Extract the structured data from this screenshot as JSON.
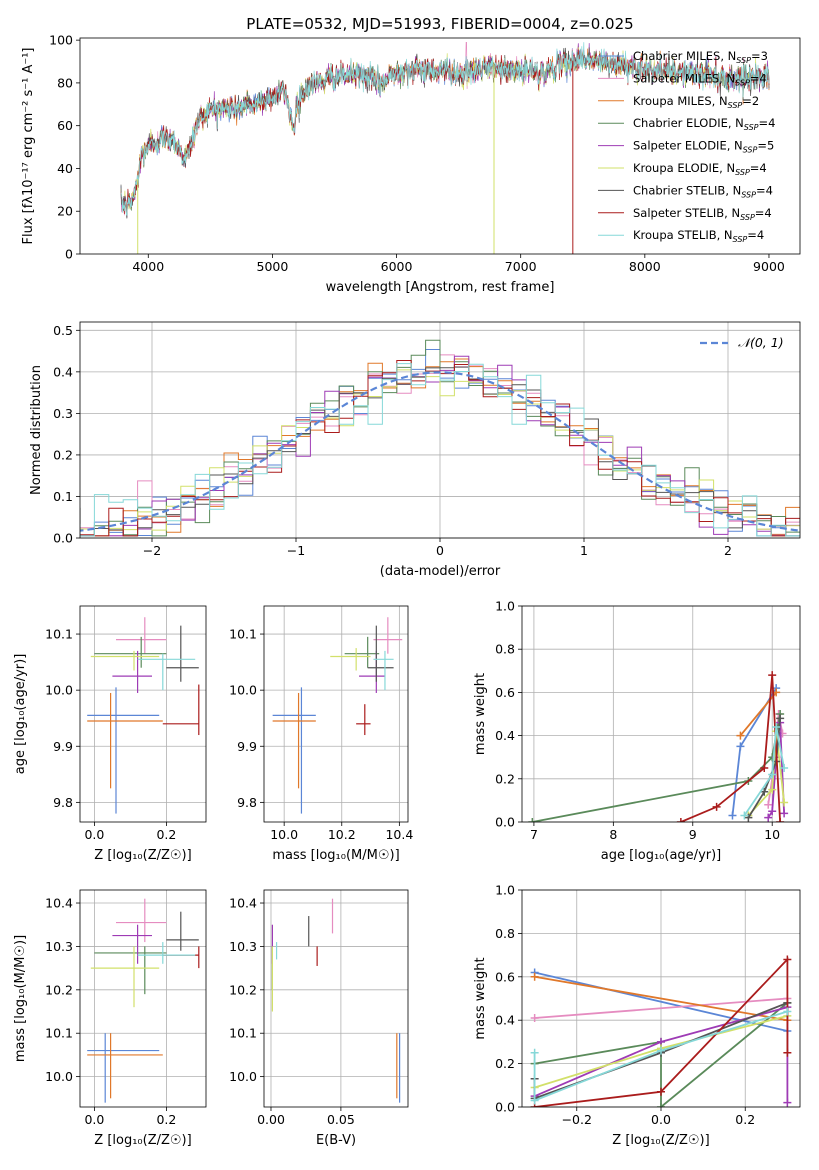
{
  "figure_title": "PLATE=0532, MJD=51993, FIBERID=0004, z=0.025",
  "colors": {
    "chabrier_miles": "#5b86d6",
    "salpeter_miles": "#e58cc0",
    "kroupa_miles": "#e0782a",
    "chabrier_elodie": "#5a8a5a",
    "salpeter_elodie": "#9e3bb5",
    "kroupa_elodie": "#d2e06a",
    "chabrier_stelib": "#555555",
    "salpeter_stelib": "#aa1c1c",
    "kroupa_stelib": "#86d8d8",
    "gaussian": "#5b86d6"
  },
  "chart_data": [
    {
      "id": "spectrum",
      "type": "line",
      "title": "PLATE=0532, MJD=51993, FIBERID=0004, z=0.025",
      "xlabel": "wavelength [Angstrom, rest frame]",
      "ylabel": "Flux [fλ10⁻¹⁷ erg cm⁻² s⁻¹ A⁻¹]",
      "xlim": [
        3450,
        9250
      ],
      "ylim": [
        0,
        101
      ],
      "xticks": [
        4000,
        5000,
        6000,
        7000,
        8000,
        9000
      ],
      "yticks": [
        0,
        20,
        40,
        60,
        80,
        100
      ],
      "legend_position": "right",
      "continuum": [
        [
          3780,
          25
        ],
        [
          3820,
          22
        ],
        [
          3860,
          24
        ],
        [
          3900,
          30
        ],
        [
          3950,
          47
        ],
        [
          4000,
          50
        ],
        [
          4100,
          54
        ],
        [
          4200,
          54
        ],
        [
          4300,
          44
        ],
        [
          4400,
          62
        ],
        [
          4500,
          68
        ],
        [
          4700,
          68
        ],
        [
          4860,
          70
        ],
        [
          5000,
          74
        ],
        [
          5100,
          76
        ],
        [
          5175,
          58
        ],
        [
          5200,
          72
        ],
        [
          5300,
          79
        ],
        [
          5500,
          83
        ],
        [
          5700,
          84
        ],
        [
          5890,
          80
        ],
        [
          6000,
          86
        ],
        [
          6200,
          86
        ],
        [
          6400,
          86
        ],
        [
          6562,
          84
        ],
        [
          6700,
          87
        ],
        [
          6900,
          86
        ],
        [
          7200,
          85
        ],
        [
          7300,
          88
        ],
        [
          7500,
          92
        ],
        [
          7700,
          89
        ],
        [
          8000,
          87
        ],
        [
          8200,
          85
        ],
        [
          8500,
          84
        ],
        [
          8700,
          82
        ],
        [
          9000,
          83
        ]
      ],
      "series": [
        {
          "name": "Chabrier MILES, N_SSP=3",
          "color_key": "chabrier_miles"
        },
        {
          "name": "Salpeter MILES, N_SSP=4",
          "color_key": "salpeter_miles"
        },
        {
          "name": "Kroupa MILES, N_SSP=2",
          "color_key": "kroupa_miles"
        },
        {
          "name": "Chabrier ELODIE, N_SSP=4",
          "color_key": "chabrier_elodie"
        },
        {
          "name": "Salpeter ELODIE, N_SSP=5",
          "color_key": "salpeter_elodie"
        },
        {
          "name": "Kroupa ELODIE, N_SSP=4",
          "color_key": "kroupa_elodie"
        },
        {
          "name": "Chabrier STELIB, N_SSP=4",
          "color_key": "chabrier_stelib"
        },
        {
          "name": "Salpeter STELIB, N_SSP=4",
          "color_key": "salpeter_stelib"
        },
        {
          "name": "Kroupa STELIB, N_SSP=4",
          "color_key": "kroupa_stelib"
        }
      ],
      "drops": [
        {
          "x": 3915,
          "color_key": "kroupa_elodie"
        },
        {
          "x": 6785,
          "color_key": "kroupa_elodie"
        },
        {
          "x": 7420,
          "color_key": "salpeter_stelib"
        }
      ]
    },
    {
      "id": "residuals",
      "type": "histogram",
      "xlabel": "(data-model)/error",
      "ylabel": "Normed distribution",
      "xlim": [
        -2.5,
        2.5
      ],
      "ylim": [
        0,
        0.52
      ],
      "xticks": [
        -2,
        -1,
        0,
        1,
        2
      ],
      "yticks": [
        0.0,
        0.1,
        0.2,
        0.3,
        0.4,
        0.5
      ],
      "bin_width": 0.1,
      "legend": "𝒩(0, 1)",
      "legend_position": "top-right",
      "grid": true
    },
    {
      "id": "age_vs_Z",
      "type": "errorbar",
      "xlabel": "Z [log₁₀(Z/Z☉)]",
      "ylabel": "age  [log₁₀(age/yr)]",
      "xlim": [
        -0.04,
        0.31
      ],
      "ylim": [
        9.765,
        10.15
      ],
      "xticks": [
        0.0,
        0.2
      ],
      "yticks": [
        9.8,
        9.9,
        10.0,
        10.1
      ],
      "grid": true,
      "points": [
        {
          "c": "chabrier_miles",
          "x": 0.06,
          "xlo": -0.02,
          "xhi": 0.18,
          "y": 9.955,
          "ylo": 9.78,
          "yhi": 10.005
        },
        {
          "c": "salpeter_miles",
          "x": 0.14,
          "xlo": 0.06,
          "xhi": 0.2,
          "y": 10.09,
          "ylo": 10.065,
          "yhi": 10.13
        },
        {
          "c": "kroupa_miles",
          "x": 0.045,
          "xlo": -0.02,
          "xhi": 0.19,
          "y": 9.945,
          "ylo": 9.825,
          "yhi": 9.995
        },
        {
          "c": "chabrier_elodie",
          "x": 0.13,
          "xlo": 0.0,
          "xhi": 0.2,
          "y": 10.065,
          "ylo": 10.04,
          "yhi": 10.095
        },
        {
          "c": "salpeter_elodie",
          "x": 0.12,
          "xlo": 0.05,
          "xhi": 0.16,
          "y": 10.025,
          "ylo": 9.995,
          "yhi": 10.07
        },
        {
          "c": "kroupa_elodie",
          "x": 0.11,
          "xlo": -0.01,
          "xhi": 0.18,
          "y": 10.06,
          "ylo": 10.035,
          "yhi": 10.07
        },
        {
          "c": "chabrier_stelib",
          "x": 0.24,
          "xlo": 0.2,
          "xhi": 0.29,
          "y": 10.04,
          "ylo": 10.015,
          "yhi": 10.115
        },
        {
          "c": "salpeter_stelib",
          "x": 0.29,
          "xlo": 0.19,
          "xhi": 0.29,
          "y": 9.94,
          "ylo": 9.92,
          "yhi": 10.01
        },
        {
          "c": "kroupa_stelib",
          "x": 0.19,
          "xlo": 0.12,
          "xhi": 0.28,
          "y": 10.055,
          "ylo": 10.0,
          "yhi": 10.065
        }
      ]
    },
    {
      "id": "age_vs_mass",
      "type": "errorbar",
      "xlabel": "mass [log₁₀(M/M☉)]",
      "ylabel": "",
      "xlim": [
        9.93,
        10.43
      ],
      "ylim": [
        9.765,
        10.15
      ],
      "xticks": [
        10.0,
        10.2,
        10.4
      ],
      "yticks": [
        9.8,
        9.9,
        10.0,
        10.1
      ],
      "grid": true,
      "points": [
        {
          "c": "chabrier_miles",
          "x": 10.06,
          "xlo": 9.96,
          "xhi": 10.11,
          "y": 9.955,
          "ylo": 9.78,
          "yhi": 10.005
        },
        {
          "c": "salpeter_miles",
          "x": 10.36,
          "xlo": 10.31,
          "xhi": 10.41,
          "y": 10.09,
          "ylo": 10.065,
          "yhi": 10.13
        },
        {
          "c": "kroupa_miles",
          "x": 10.05,
          "xlo": 9.96,
          "xhi": 10.11,
          "y": 9.945,
          "ylo": 9.825,
          "yhi": 9.995
        },
        {
          "c": "chabrier_elodie",
          "x": 10.29,
          "xlo": 10.21,
          "xhi": 10.33,
          "y": 10.065,
          "ylo": 10.04,
          "yhi": 10.095
        },
        {
          "c": "salpeter_elodie",
          "x": 10.32,
          "xlo": 10.26,
          "xhi": 10.35,
          "y": 10.025,
          "ylo": 9.995,
          "yhi": 10.07
        },
        {
          "c": "kroupa_elodie",
          "x": 10.25,
          "xlo": 10.16,
          "xhi": 10.3,
          "y": 10.06,
          "ylo": 10.035,
          "yhi": 10.075
        },
        {
          "c": "chabrier_stelib",
          "x": 10.32,
          "xlo": 10.29,
          "xhi": 10.38,
          "y": 10.04,
          "ylo": 10.015,
          "yhi": 10.115
        },
        {
          "c": "salpeter_stelib",
          "x": 10.28,
          "xlo": 10.25,
          "xhi": 10.3,
          "y": 9.94,
          "ylo": 9.92,
          "yhi": 9.975
        },
        {
          "c": "kroupa_stelib",
          "x": 10.35,
          "xlo": 10.31,
          "xhi": 10.38,
          "y": 10.055,
          "ylo": 10.0,
          "yhi": 10.07
        }
      ]
    },
    {
      "id": "massweight_vs_age",
      "type": "line",
      "xlabel": "age  [log₁₀(age/yr)]",
      "ylabel": "mass weight",
      "xlim": [
        6.85,
        10.35
      ],
      "ylim": [
        0,
        1
      ],
      "xticks": [
        7,
        8,
        9,
        10
      ],
      "yticks": [
        0.0,
        0.2,
        0.4,
        0.6,
        0.8,
        1.0
      ],
      "grid": true,
      "series": [
        {
          "c": "chabrier_miles",
          "pts": [
            [
              9.5,
              0.03
            ],
            [
              9.6,
              0.35
            ],
            [
              10.05,
              0.62
            ]
          ]
        },
        {
          "c": "salpeter_miles",
          "pts": [
            [
              9.95,
              0.08
            ],
            [
              10.0,
              0.2
            ],
            [
              10.08,
              0.5
            ],
            [
              10.13,
              0.41
            ]
          ]
        },
        {
          "c": "kroupa_miles",
          "pts": [
            [
              9.6,
              0.4
            ],
            [
              10.05,
              0.6
            ]
          ]
        },
        {
          "c": "chabrier_elodie",
          "pts": [
            [
              6.98,
              0.0
            ],
            [
              9.7,
              0.19
            ],
            [
              10.0,
              0.3
            ],
            [
              10.1,
              0.5
            ]
          ]
        },
        {
          "c": "salpeter_elodie",
          "pts": [
            [
              9.95,
              0.02
            ],
            [
              10.0,
              0.05
            ],
            [
              10.05,
              0.3
            ],
            [
              10.1,
              0.46
            ],
            [
              10.15,
              0.04
            ]
          ]
        },
        {
          "c": "kroupa_elodie",
          "pts": [
            [
              9.7,
              0.03
            ],
            [
              10.0,
              0.15
            ],
            [
              10.05,
              0.42
            ],
            [
              10.15,
              0.09
            ]
          ]
        },
        {
          "c": "chabrier_stelib",
          "pts": [
            [
              9.7,
              0.02
            ],
            [
              9.9,
              0.14
            ],
            [
              10.05,
              0.28
            ],
            [
              10.1,
              0.48
            ]
          ]
        },
        {
          "c": "salpeter_stelib",
          "pts": [
            [
              8.85,
              0.0
            ],
            [
              9.3,
              0.07
            ],
            [
              9.9,
              0.25
            ],
            [
              10.0,
              0.68
            ],
            [
              10.1,
              0.0
            ]
          ]
        },
        {
          "c": "kroupa_stelib",
          "pts": [
            [
              9.65,
              0.03
            ],
            [
              10.0,
              0.22
            ],
            [
              10.05,
              0.44
            ],
            [
              10.15,
              0.25
            ]
          ]
        }
      ]
    },
    {
      "id": "mass_vs_Z",
      "type": "errorbar",
      "xlabel": "Z [log₁₀(Z/Z☉)]",
      "ylabel": "mass [log₁₀(M/M☉)]",
      "xlim": [
        -0.04,
        0.31
      ],
      "ylim": [
        9.93,
        10.43
      ],
      "xticks": [
        0.0,
        0.2
      ],
      "yticks": [
        10.0,
        10.1,
        10.2,
        10.3,
        10.4
      ],
      "grid": true,
      "points": [
        {
          "c": "chabrier_miles",
          "x": 0.03,
          "xlo": -0.02,
          "xhi": 0.18,
          "y": 10.06,
          "ylo": 9.94,
          "yhi": 10.1
        },
        {
          "c": "salpeter_miles",
          "x": 0.14,
          "xlo": 0.06,
          "xhi": 0.2,
          "y": 10.355,
          "ylo": 10.31,
          "yhi": 10.41
        },
        {
          "c": "kroupa_miles",
          "x": 0.045,
          "xlo": -0.02,
          "xhi": 0.19,
          "y": 10.05,
          "ylo": 9.95,
          "yhi": 10.1
        },
        {
          "c": "chabrier_elodie",
          "x": 0.14,
          "xlo": 0.0,
          "xhi": 0.2,
          "y": 10.285,
          "ylo": 10.19,
          "yhi": 10.3
        },
        {
          "c": "salpeter_elodie",
          "x": 0.12,
          "xlo": 0.05,
          "xhi": 0.16,
          "y": 10.325,
          "ylo": 10.26,
          "yhi": 10.35
        },
        {
          "c": "kroupa_elodie",
          "x": 0.11,
          "xlo": -0.01,
          "xhi": 0.18,
          "y": 10.25,
          "ylo": 10.16,
          "yhi": 10.3
        },
        {
          "c": "chabrier_stelib",
          "x": 0.24,
          "xlo": 0.2,
          "xhi": 0.29,
          "y": 10.315,
          "ylo": 10.29,
          "yhi": 10.38
        },
        {
          "c": "salpeter_stelib",
          "x": 0.29,
          "xlo": 0.19,
          "xhi": 0.29,
          "y": 10.28,
          "ylo": 10.25,
          "yhi": 10.3
        },
        {
          "c": "kroupa_stelib",
          "x": 0.19,
          "xlo": 0.12,
          "xhi": 0.28,
          "y": 10.28,
          "ylo": 10.26,
          "yhi": 10.31
        }
      ]
    },
    {
      "id": "mass_vs_ebv",
      "type": "errorbar",
      "xlabel": "E(B-V)",
      "ylabel": "",
      "xlim": [
        -0.005,
        0.098
      ],
      "ylim": [
        9.93,
        10.43
      ],
      "xticks": [
        0.0,
        0.05
      ],
      "yticks": [
        10.0,
        10.1,
        10.2,
        10.3,
        10.4
      ],
      "grid": true,
      "points": [
        {
          "c": "chabrier_miles",
          "x": 0.092,
          "y": 10.06,
          "ylo": 9.94,
          "yhi": 10.1
        },
        {
          "c": "salpeter_miles",
          "x": 0.044,
          "y": 10.355,
          "ylo": 10.33,
          "yhi": 10.41
        },
        {
          "c": "kroupa_miles",
          "x": 0.09,
          "y": 10.05,
          "ylo": 9.95,
          "yhi": 10.1
        },
        {
          "c": "chabrier_elodie",
          "x": 0.001,
          "y": 10.285,
          "ylo": 10.2,
          "yhi": 10.3
        },
        {
          "c": "salpeter_elodie",
          "x": 0.001,
          "y": 10.325,
          "ylo": 10.26,
          "yhi": 10.35
        },
        {
          "c": "kroupa_elodie",
          "x": 0.001,
          "y": 10.25,
          "ylo": 10.15,
          "yhi": 10.3
        },
        {
          "c": "chabrier_stelib",
          "x": 0.027,
          "y": 10.33,
          "ylo": 10.3,
          "yhi": 10.37
        },
        {
          "c": "salpeter_stelib",
          "x": 0.033,
          "y": 10.28,
          "ylo": 10.255,
          "yhi": 10.3
        },
        {
          "c": "kroupa_stelib",
          "x": 0.004,
          "y": 10.29,
          "ylo": 10.27,
          "yhi": 10.31
        }
      ]
    },
    {
      "id": "massweight_vs_Z",
      "type": "line",
      "xlabel": "Z [log₁₀(Z/Z☉)]",
      "ylabel": "mass weight",
      "xlim": [
        -0.33,
        0.33
      ],
      "ylim": [
        0,
        1
      ],
      "xticks": [
        -0.2,
        0.0,
        0.2
      ],
      "yticks": [
        0.0,
        0.2,
        0.4,
        0.6,
        0.8,
        1.0
      ],
      "grid": true,
      "series": [
        {
          "c": "chabrier_miles",
          "pts": [
            [
              -0.3,
              0.62
            ],
            [
              0.3,
              0.35
            ]
          ]
        },
        {
          "c": "salpeter_miles",
          "pts": [
            [
              -0.3,
              0.41
            ],
            [
              0.3,
              0.5
            ]
          ]
        },
        {
          "c": "kroupa_miles",
          "pts": [
            [
              -0.3,
              0.6
            ],
            [
              0.3,
              0.4
            ]
          ]
        },
        {
          "c": "chabrier_elodie",
          "pts": [
            [
              -0.3,
              0.2
            ],
            [
              0.0,
              0.3
            ],
            [
              0.0,
              0.0
            ],
            [
              0.3,
              0.48
            ]
          ]
        },
        {
          "c": "salpeter_elodie",
          "pts": [
            [
              -0.3,
              0.05
            ],
            [
              0.0,
              0.3
            ],
            [
              0.3,
              0.46
            ],
            [
              0.3,
              0.02
            ]
          ]
        },
        {
          "c": "kroupa_elodie",
          "pts": [
            [
              -0.3,
              0.09
            ],
            [
              0.0,
              0.27
            ],
            [
              0.3,
              0.42
            ]
          ]
        },
        {
          "c": "chabrier_stelib",
          "pts": [
            [
              -0.3,
              0.13
            ],
            [
              -0.3,
              0.04
            ],
            [
              0.0,
              0.25
            ],
            [
              0.3,
              0.48
            ]
          ]
        },
        {
          "c": "salpeter_stelib",
          "pts": [
            [
              -0.3,
              0.0
            ],
            [
              0.0,
              0.07
            ],
            [
              0.3,
              0.68
            ],
            [
              0.3,
              0.25
            ]
          ]
        },
        {
          "c": "kroupa_stelib",
          "pts": [
            [
              -0.3,
              0.25
            ],
            [
              -0.3,
              0.03
            ],
            [
              0.0,
              0.26
            ],
            [
              0.3,
              0.44
            ]
          ]
        }
      ]
    }
  ]
}
